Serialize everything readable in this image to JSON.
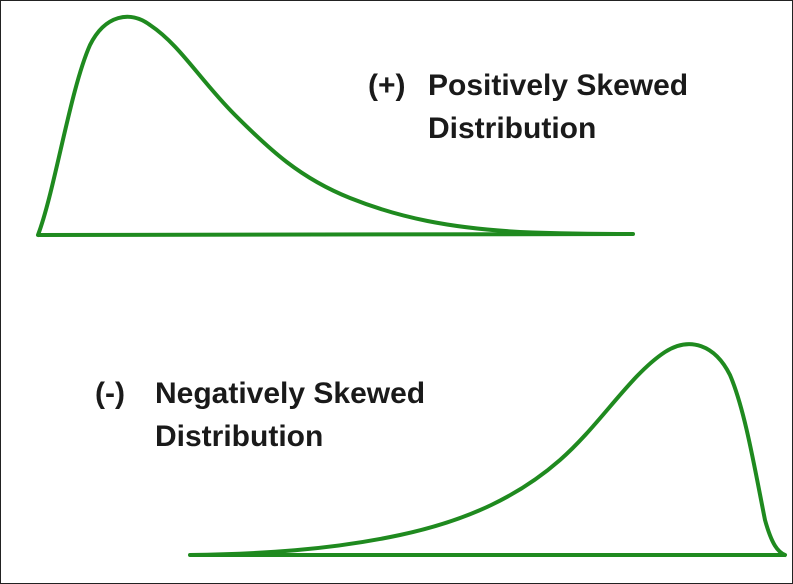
{
  "diagrams": [
    {
      "sign": "(+)",
      "name": "Positively Skewed",
      "subtitle": "Distribution"
    },
    {
      "sign": "(-)",
      "name": "Negatively Skewed",
      "subtitle": "Distribution"
    }
  ]
}
